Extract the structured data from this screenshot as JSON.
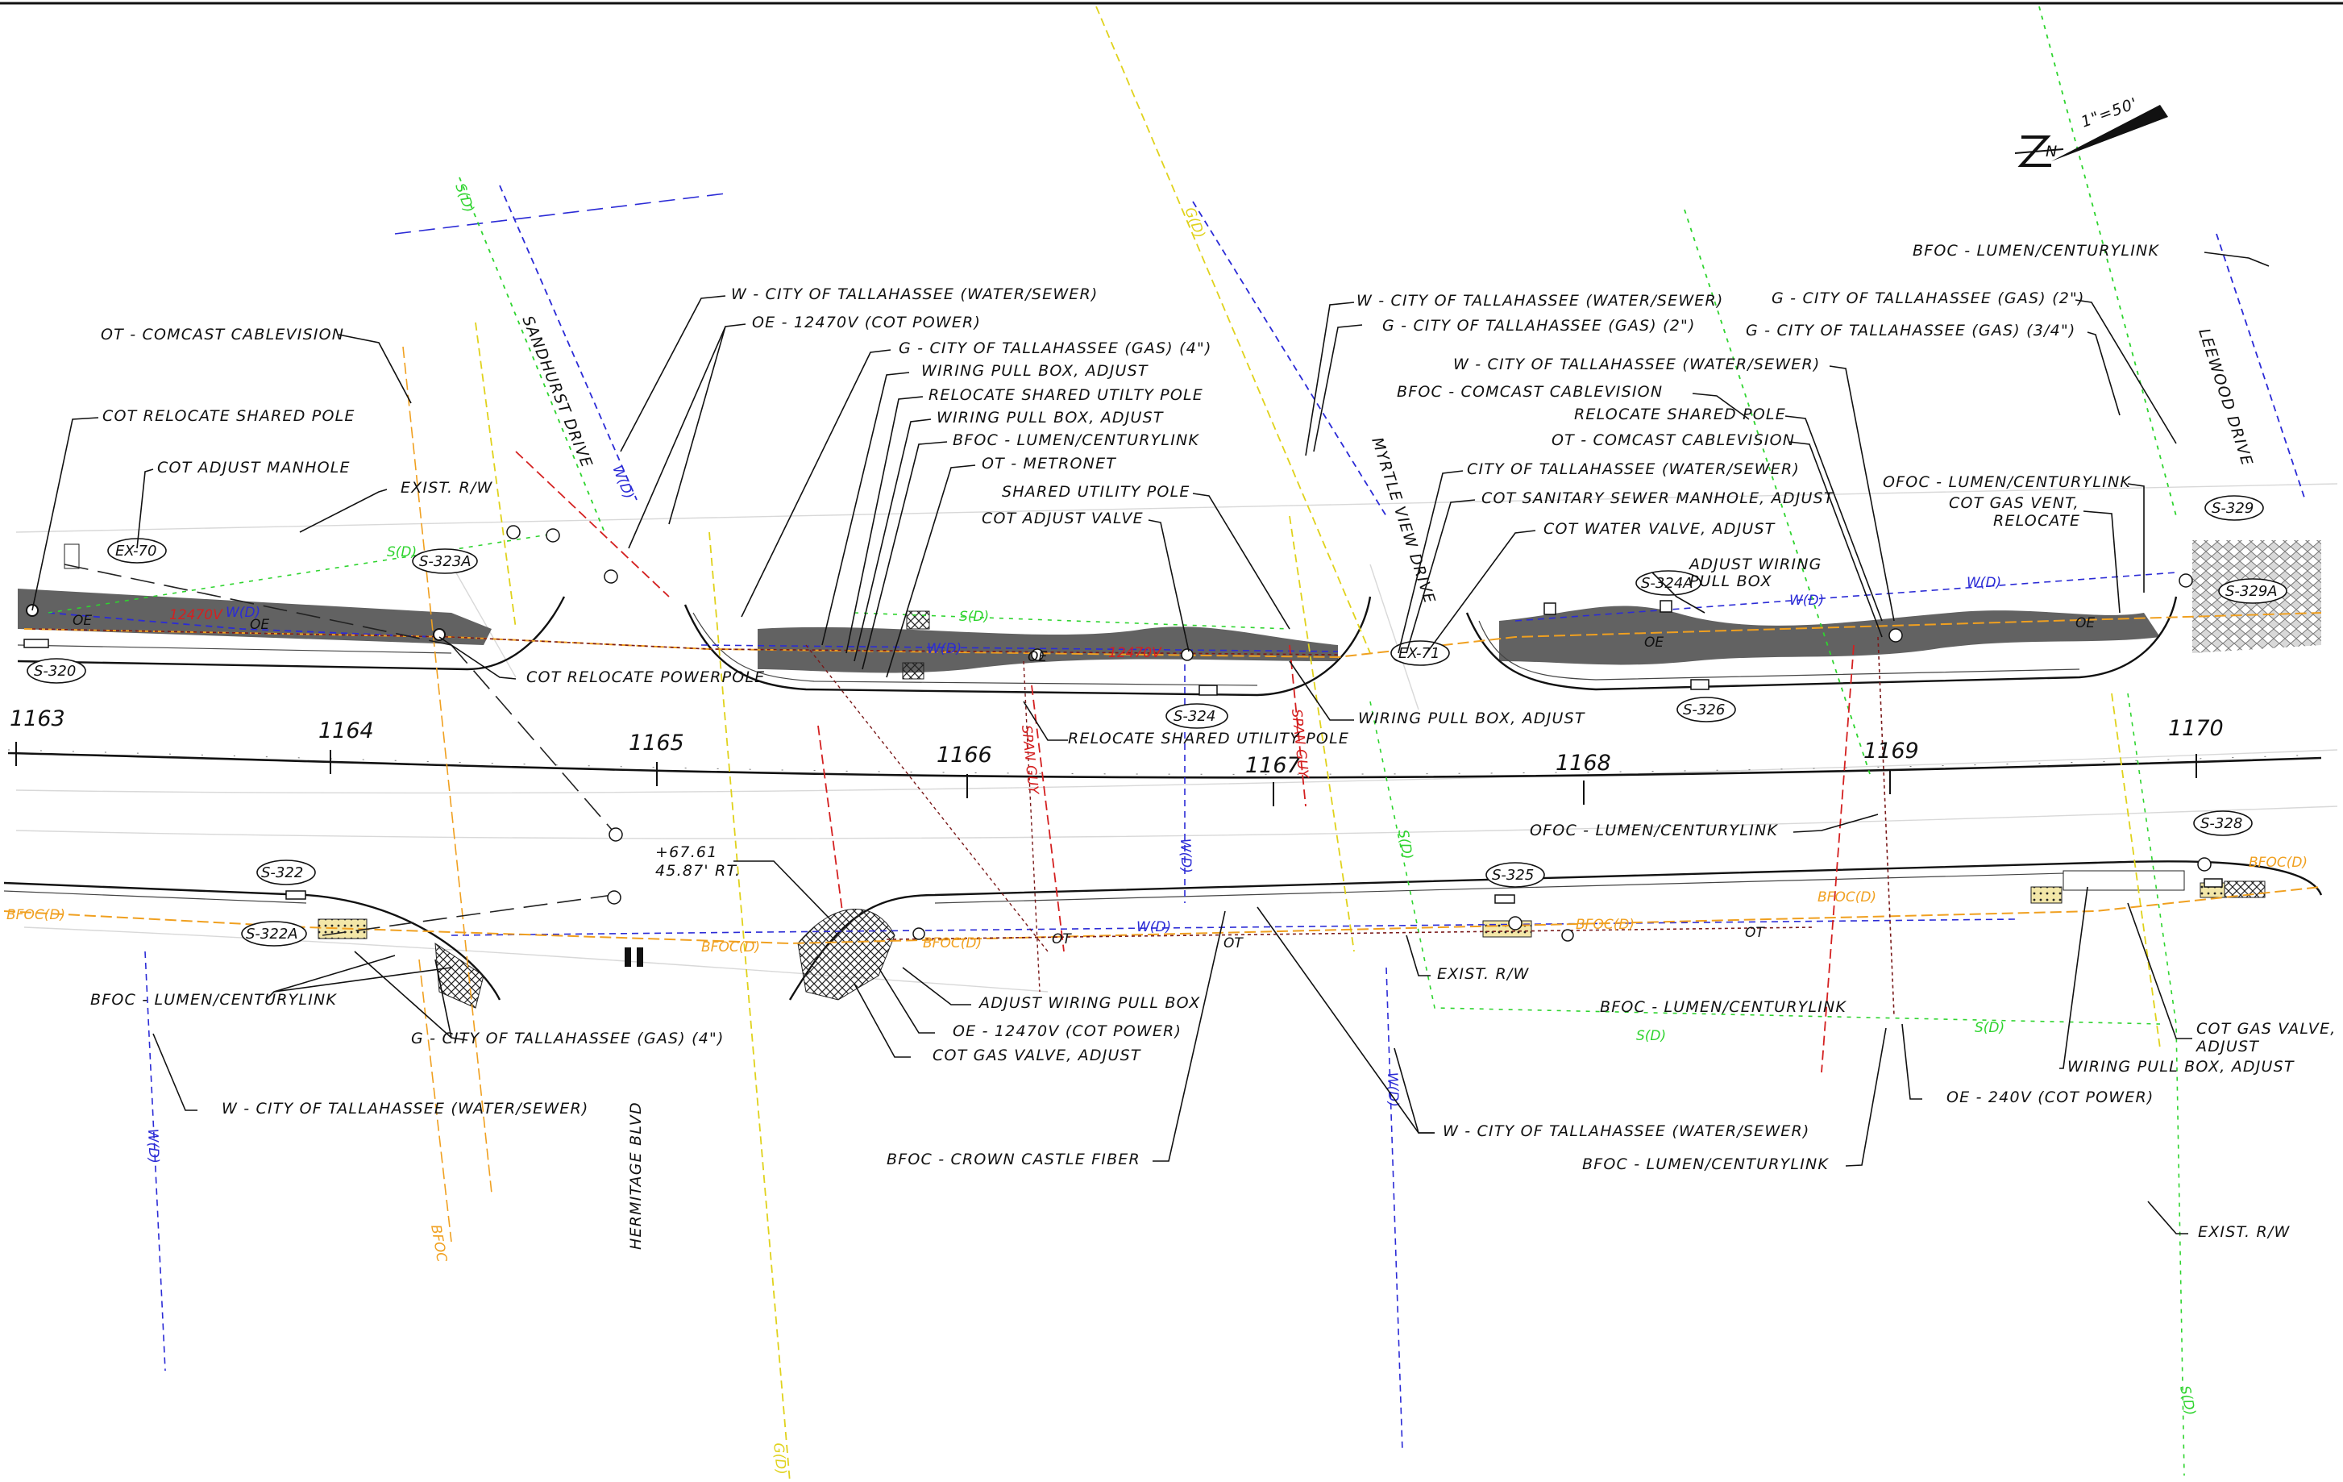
{
  "sheet": {
    "scale_label": "1\"=50'",
    "north_symbol": "N",
    "colors": {
      "water": "#2b2bd6",
      "sewer": "#2fd42f",
      "gas": "#e0d21c",
      "fiber": "#f0a020",
      "power": "#d42020",
      "telecom": "#7a1a1a",
      "sidewalk": "#5a5a5a",
      "brick": "#9a9a9a"
    }
  },
  "stations": [
    "1163",
    "1164",
    "1165",
    "1166",
    "1167",
    "1168",
    "1169",
    "1170"
  ],
  "streets": [
    "SANDHURST DRIVE",
    "MYRTLE VIEW DRIVE",
    "LEEWOOD DRIVE",
    "HERMITAGE BLVD"
  ],
  "structures": [
    "EX-70",
    "S-320",
    "S-323A",
    "S-322",
    "S-322A",
    "S-324",
    "EX-71",
    "S-324A",
    "S-325",
    "S-326",
    "S-328",
    "S-329",
    "S-329A"
  ],
  "offset_note": {
    "line1": "+67.61",
    "line2": "45.87' RT."
  },
  "callouts": {
    "c01": "OT - COMCAST CABLEVISION",
    "c02": "COT RELOCATE SHARED POLE",
    "c03": "COT ADJUST MANHOLE",
    "c04": "EXIST. R/W",
    "c05": "COT RELOCATE POWERPOLE",
    "c06": "W - CITY OF TALLAHASSEE (WATER/SEWER)",
    "c07": "OE - 12470V (COT POWER)",
    "c08": "G - CITY OF TALLAHASSEE (GAS) (4\")",
    "c09": "WIRING PULL BOX, ADJUST",
    "c10": "RELOCATE SHARED UTILTY POLE",
    "c11": "WIRING PULL BOX, ADJUST",
    "c12": "BFOC - LUMEN/CENTURYLINK",
    "c13": "OT - METRONET",
    "c14": "SHARED UTILITY POLE",
    "c15": "COT ADJUST VALVE",
    "c16": "RELOCATE SHARED UTILITY POLE",
    "c17": "WIRING PULL BOX, ADJUST",
    "c18": "W - CITY OF TALLAHASSEE (WATER/SEWER)",
    "c19": "G - CITY OF TALLAHASSEE (GAS) (2\")",
    "c20": "BFOC - LUMEN/CENTURYLINK",
    "c21": "G - CITY OF TALLAHASSEE (GAS) (2\")",
    "c22": "G - CITY OF TALLAHASSEE (GAS) (3/4\")",
    "c23": "W - CITY OF TALLAHASSEE (WATER/SEWER)",
    "c24": "BFOC - COMCAST CABLEVISION",
    "c25": "RELOCATE SHARED POLE",
    "c26": "OT - COMCAST CABLEVISION",
    "c27": "CITY OF TALLAHASSEE (WATER/SEWER)",
    "c28": "COT SANITARY SEWER MANHOLE, ADJUST",
    "c29": "COT WATER VALVE, ADJUST",
    "c30": "ADJUST WIRING",
    "c30b": "PULL BOX",
    "c31": "OFOC - LUMEN/CENTURYLINK",
    "c32": "COT GAS VENT,",
    "c32b": "RELOCATE",
    "c33": "OFOC - LUMEN/CENTURYLINK",
    "c34": "BFOC - LUMEN/CENTURYLINK",
    "c35": "G - CITY OF TALLAHASSEE (GAS) (4\")",
    "c36": "W - CITY OF TALLAHASSEE (WATER/SEWER)",
    "c37": "ADJUST WIRING PULL BOX",
    "c38": "OE - 12470V (COT POWER)",
    "c39": "COT GAS VALVE, ADJUST",
    "c40": "BFOC - CROWN CASTLE FIBER",
    "c41": "EXIST. R/W",
    "c42": "BFOC - LUMEN/CENTURYLINK",
    "c43": "W - CITY OF TALLAHASSEE (WATER/SEWER)",
    "c44": "BFOC - LUMEN/CENTURYLINK",
    "c45": "OE - 240V (COT POWER)",
    "c46": "WIRING PULL BOX, ADJUST",
    "c47": "COT GAS VALVE,",
    "c47b": "ADJUST",
    "c48": "EXIST. R/W"
  },
  "line_tags": {
    "water": "W(D)",
    "sewer": "S(D)",
    "fiber": "BFOC(D)",
    "power": "OE",
    "telecom": "OT",
    "gas": "G(D)",
    "voltage": "12470V",
    "span_guy": "SPAN GUY",
    "fiber_short": "BFOC"
  }
}
